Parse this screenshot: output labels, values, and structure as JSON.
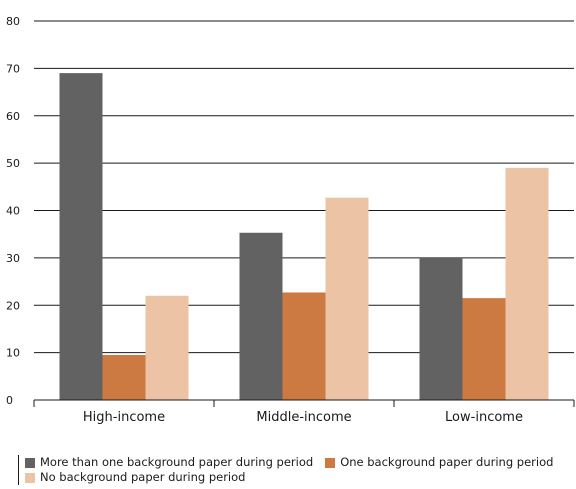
{
  "chart_data": {
    "type": "bar",
    "title": "",
    "xlabel": "",
    "ylabel": "",
    "categories": [
      "High-income",
      "Middle-income",
      "Low-income"
    ],
    "series": [
      {
        "name": "More than one background paper during period",
        "values": [
          69,
          35.3,
          30
        ],
        "color": "#626262"
      },
      {
        "name": "One background paper during period",
        "values": [
          9.5,
          22.7,
          21.5
        ],
        "color": "#cc7a42"
      },
      {
        "name": "No background paper during period",
        "values": [
          22,
          42.7,
          49
        ],
        "color": "#ecc3a4"
      }
    ],
    "ylim": [
      0,
      80
    ],
    "yticks": [
      0,
      10,
      20,
      30,
      40,
      50,
      60,
      70,
      80
    ],
    "grid": true,
    "legend_position": "bottom"
  }
}
